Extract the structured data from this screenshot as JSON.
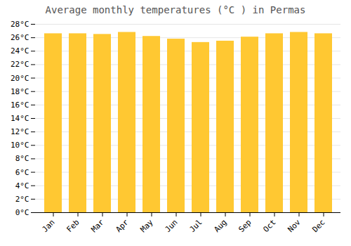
{
  "chart_data": {
    "type": "bar",
    "title": "Average monthly temperatures (°C ) in Permas",
    "categories": [
      "Jan",
      "Feb",
      "Mar",
      "Apr",
      "May",
      "Jun",
      "Jul",
      "Aug",
      "Sep",
      "Oct",
      "Nov",
      "Dec"
    ],
    "values": [
      26.6,
      26.6,
      26.5,
      26.8,
      26.2,
      25.8,
      25.3,
      25.5,
      26.1,
      26.6,
      26.8,
      26.6
    ],
    "color": "#FFC832",
    "ylim": [
      0,
      28
    ],
    "yticks": [
      {
        "value": 0,
        "label": "0°C"
      },
      {
        "value": 2,
        "label": "2°C"
      },
      {
        "value": 4,
        "label": "4°C"
      },
      {
        "value": 6,
        "label": "6°C"
      },
      {
        "value": 8,
        "label": "8°C"
      },
      {
        "value": 10,
        "label": "10°C"
      },
      {
        "value": 12,
        "label": "12°C"
      },
      {
        "value": 14,
        "label": "14°C"
      },
      {
        "value": 16,
        "label": "16°C"
      },
      {
        "value": 18,
        "label": "18°C"
      },
      {
        "value": 20,
        "label": "20°C"
      },
      {
        "value": 22,
        "label": "22°C"
      },
      {
        "value": 24,
        "label": "24°C"
      },
      {
        "value": 26,
        "label": "26°C"
      },
      {
        "value": 28,
        "label": "28°C"
      }
    ],
    "grid": true
  }
}
